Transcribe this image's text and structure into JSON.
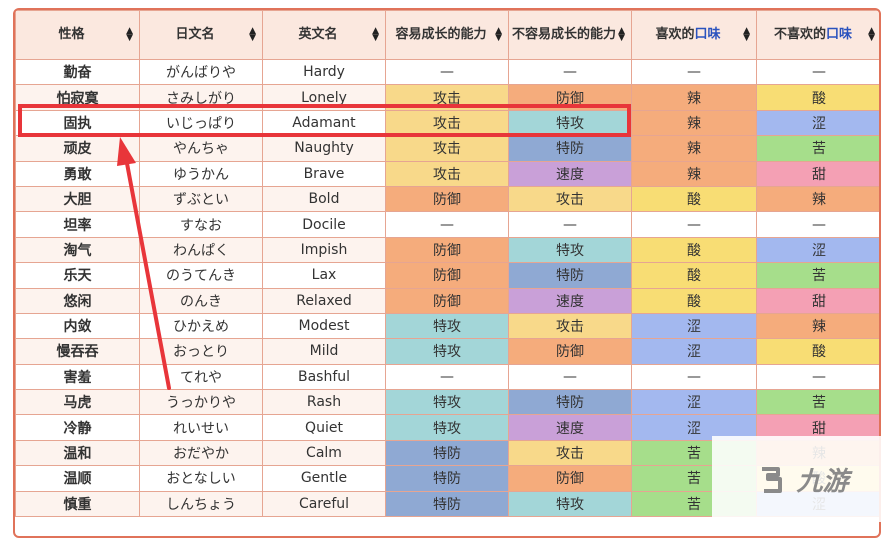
{
  "table": {
    "headers": [
      "性格",
      "日文名",
      "英文名",
      "容易成长的能力",
      "不容易成长的能力",
      "喜欢的口味",
      "不喜欢的口味"
    ],
    "rows": [
      [
        "勤奋",
        "がんばりや",
        "Hardy",
        "—",
        "—",
        "—",
        "—"
      ],
      [
        "怕寂寞",
        "さみしがり",
        "Lonely",
        "攻击",
        "防御",
        "辣",
        "酸"
      ],
      [
        "固执",
        "いじっぱり",
        "Adamant",
        "攻击",
        "特攻",
        "辣",
        "涩"
      ],
      [
        "顽皮",
        "やんちゃ",
        "Naughty",
        "攻击",
        "特防",
        "辣",
        "苦"
      ],
      [
        "勇敢",
        "ゆうかん",
        "Brave",
        "攻击",
        "速度",
        "辣",
        "甜"
      ],
      [
        "大胆",
        "ずぶとい",
        "Bold",
        "防御",
        "攻击",
        "酸",
        "辣"
      ],
      [
        "坦率",
        "すなお",
        "Docile",
        "—",
        "—",
        "—",
        "—"
      ],
      [
        "淘气",
        "わんぱく",
        "Impish",
        "防御",
        "特攻",
        "酸",
        "涩"
      ],
      [
        "乐天",
        "のうてんき",
        "Lax",
        "防御",
        "特防",
        "酸",
        "苦"
      ],
      [
        "悠闲",
        "のんき",
        "Relaxed",
        "防御",
        "速度",
        "酸",
        "甜"
      ],
      [
        "内敛",
        "ひかえめ",
        "Modest",
        "特攻",
        "攻击",
        "涩",
        "辣"
      ],
      [
        "慢吞吞",
        "おっとり",
        "Mild",
        "特攻",
        "防御",
        "涩",
        "酸"
      ],
      [
        "害羞",
        "てれや",
        "Bashful",
        "—",
        "—",
        "—",
        "—"
      ],
      [
        "马虎",
        "うっかりや",
        "Rash",
        "特攻",
        "特防",
        "涩",
        "苦"
      ],
      [
        "冷静",
        "れいせい",
        "Quiet",
        "特攻",
        "速度",
        "涩",
        "甜"
      ],
      [
        "温和",
        "おだやか",
        "Calm",
        "特防",
        "攻击",
        "苦",
        "辣"
      ],
      [
        "温顺",
        "おとなしい",
        "Gentle",
        "特防",
        "防御",
        "苦",
        "酸"
      ],
      [
        "慎重",
        "しんちょう",
        "Careful",
        "特防",
        "特攻",
        "苦",
        "涩"
      ]
    ]
  },
  "colors": {
    "frame_border": "#e0735a",
    "header_bg": "#fbe8df",
    "highlight_box": "#e8353a",
    "arrow": "#e8353a",
    "attributes": {
      "攻击": "#f8d98a",
      "防御": "#f5ac7c",
      "特攻": "#a3d6d8",
      "特防": "#8fa9d3",
      "速度": "#c9a0d8",
      "辣": "#f5ac7c",
      "酸": "#f8dd74",
      "涩": "#a3b8ef",
      "苦": "#a6de8b",
      "甜": "#f4a0b4"
    }
  },
  "highlighted_row": "固执",
  "watermark": {
    "text": "九游",
    "icon": "jiuyou-logo-icon"
  }
}
